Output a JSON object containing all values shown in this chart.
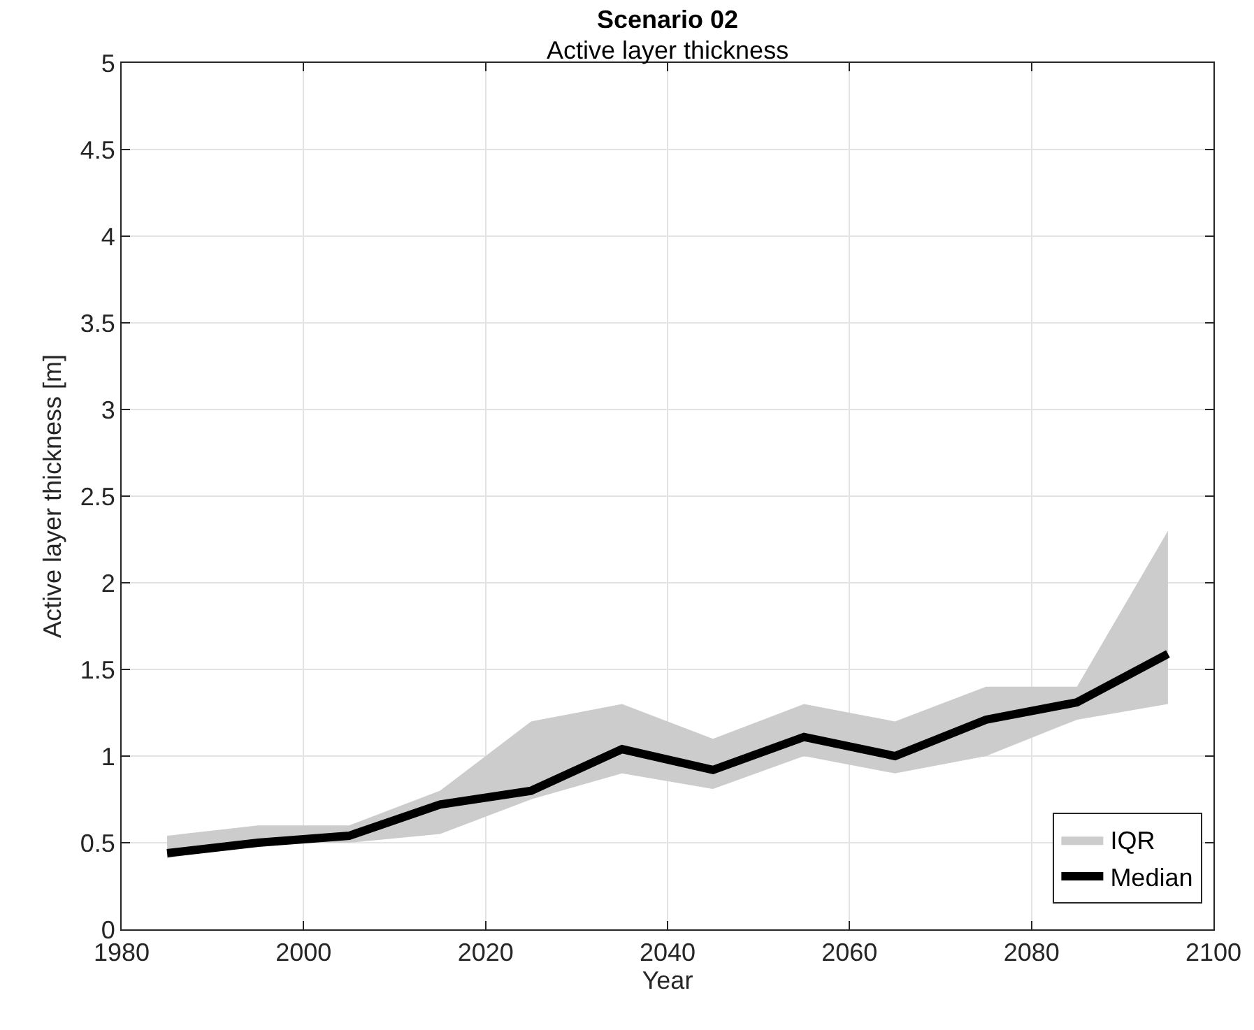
{
  "chart_data": {
    "type": "line",
    "title": "Scenario 02",
    "subtitle": "Active layer thickness",
    "xlabel": "Year",
    "ylabel": "Active layer thickness [m]",
    "x": [
      1985,
      1995,
      2005,
      2015,
      2025,
      2035,
      2045,
      2055,
      2065,
      2075,
      2085,
      2095
    ],
    "series": [
      {
        "name": "IQR",
        "type": "area",
        "color": "#cccccc",
        "values": [
          null,
          null,
          null,
          null,
          null,
          null,
          null,
          null,
          null,
          null,
          null,
          null
        ],
        "lower": [
          0.41,
          0.5,
          0.5,
          0.55,
          0.75,
          0.9,
          0.81,
          1.0,
          0.9,
          1.0,
          1.21,
          1.3
        ],
        "upper": [
          0.54,
          0.6,
          0.6,
          0.8,
          1.2,
          1.3,
          1.1,
          1.3,
          1.2,
          1.4,
          1.4,
          2.3
        ]
      },
      {
        "name": "Median",
        "color": "#000000",
        "values": [
          0.44,
          0.5,
          0.54,
          0.72,
          0.8,
          1.04,
          0.92,
          1.11,
          1.0,
          1.21,
          1.31,
          1.59
        ]
      }
    ],
    "xlim": [
      1980,
      2100
    ],
    "xticks": [
      1980,
      2000,
      2020,
      2040,
      2060,
      2080,
      2100
    ],
    "ylim": [
      0,
      5
    ],
    "yticks": [
      0,
      0.5,
      1,
      1.5,
      2,
      2.5,
      3,
      3.5,
      4,
      4.5,
      5
    ],
    "grid": true,
    "legend": "bottom right",
    "line_style": "solid",
    "marker": "none"
  }
}
